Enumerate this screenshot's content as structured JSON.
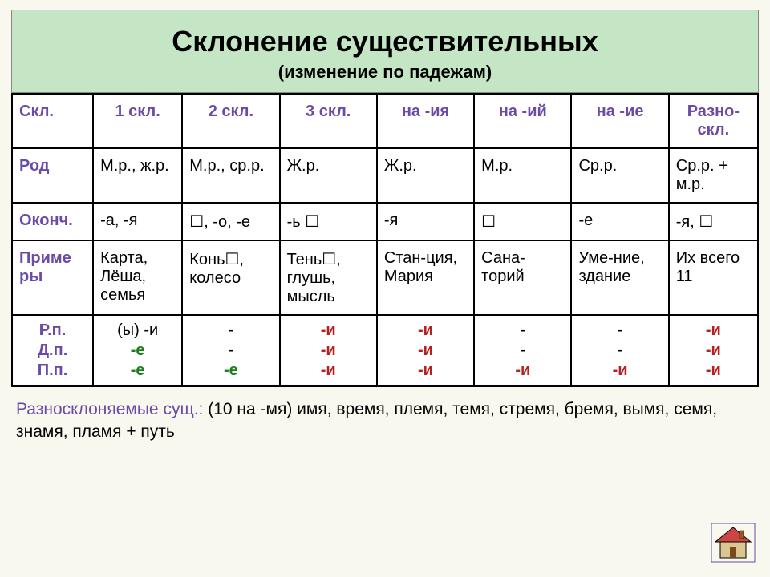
{
  "title": "Склонение существительных",
  "subtitle": "(изменение по падежам)",
  "columns": [
    "Скл.",
    "1 скл.",
    "2 скл.",
    "3 скл.",
    "на -ия",
    "на -ий",
    "на -ие",
    "Разно-скл."
  ],
  "row_labels": {
    "gender": "Род",
    "ending": "Оконч.",
    "examples": "Приме ры",
    "cases": [
      "Р.п.",
      "Д.п.",
      "П.п."
    ]
  },
  "gender": [
    "М.р., ж.р.",
    "М.р., ср.р.",
    "Ж.р.",
    "Ж.р.",
    "М.р.",
    "Ср.р.",
    "Ср.р. + м.р."
  ],
  "endings": [
    "-а, -я",
    "☐, -о, -е",
    "-ь ☐",
    "-я",
    "☐",
    "-е",
    "-я, ☐"
  ],
  "examples": [
    "Карта, Лёша, семья",
    "Конь☐, колесо",
    "Тень☐, глушь, мысль",
    "Стан-ция, Мария",
    "Сана-торий",
    "Уме-ние, здание",
    "Их всего 11"
  ],
  "case_endings": [
    {
      "r": "(ы) -и",
      "d": "-е",
      "p": "-е",
      "r_color": "e-black",
      "d_color": "e-green",
      "p_color": "e-green"
    },
    {
      "r": "-",
      "d": "-",
      "p": "-е",
      "r_color": "e-black",
      "d_color": "e-black",
      "p_color": "e-green"
    },
    {
      "r": "-и",
      "d": "-и",
      "p": "-и",
      "r_color": "e-red",
      "d_color": "e-red",
      "p_color": "e-red"
    },
    {
      "r": "-и",
      "d": "-и",
      "p": "-и",
      "r_color": "e-red",
      "d_color": "e-red",
      "p_color": "e-red"
    },
    {
      "r": "-",
      "d": "-",
      "p": "-и",
      "r_color": "e-black",
      "d_color": "e-black",
      "p_color": "e-red"
    },
    {
      "r": "-",
      "d": "-",
      "p": "-и",
      "r_color": "e-black",
      "d_color": "e-black",
      "p_color": "e-red"
    },
    {
      "r": "-и",
      "d": "-и",
      "p": "-и",
      "r_color": "e-red",
      "d_color": "e-red",
      "p_color": "e-red"
    }
  ],
  "footer_lead": "Разносклоняемые сущ.:",
  "footer_text": " (10 на -мя)   имя, время, племя, темя, стремя, бремя, вымя, семя, знамя, пламя  +  путь",
  "colors": {
    "title_bg": "#c4e6c4",
    "page_bg": "#f8f8ee",
    "label": "#6b4aa8",
    "red": "#b82020",
    "green": "#1b7e1b",
    "border": "#000000"
  }
}
